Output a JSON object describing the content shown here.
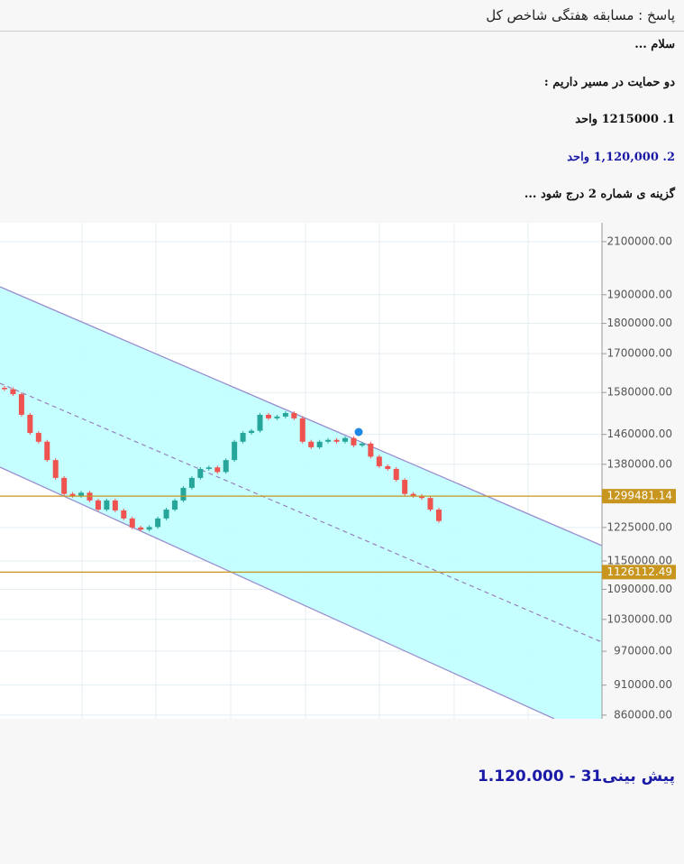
{
  "post": {
    "title": "پاسخ : مسابقه هفتگی شاخص کل",
    "lines": [
      "سلام ...",
      "دو حمایت در مسیر داریم :",
      "1. 1215000 واحد",
      "2. 1,120,000 واحد",
      "گزینه ی شماره 2 درج شود ..."
    ],
    "footer": "پیش بینی31 - 1.120.000"
  },
  "chart_data": {
    "type": "candlestick",
    "open": [
      1594000,
      1590000,
      1575000,
      1515000,
      1464000,
      1440000,
      1391000,
      1345000,
      1305000,
      1300000,
      1308000,
      1289000,
      1267000,
      1289000,
      1265000,
      1246000,
      1225000,
      1220000,
      1226000,
      1246000,
      1267000,
      1289000,
      1320000,
      1345000,
      1368000,
      1372000,
      1360000,
      1391000,
      1440000,
      1464000,
      1470000,
      1515000,
      1505000,
      1510000,
      1520000,
      1505000,
      1440000,
      1425000,
      1440000,
      1445000,
      1440000,
      1450000,
      1430000,
      1435000,
      1400000,
      1375000,
      1368000,
      1340000,
      1305000,
      1300000,
      1295000,
      1267000
    ],
    "close": [
      1590000,
      1575000,
      1515000,
      1464000,
      1440000,
      1391000,
      1345000,
      1305000,
      1300000,
      1308000,
      1289000,
      1267000,
      1289000,
      1265000,
      1246000,
      1225000,
      1220000,
      1226000,
      1246000,
      1267000,
      1289000,
      1320000,
      1345000,
      1368000,
      1372000,
      1360000,
      1391000,
      1440000,
      1464000,
      1470000,
      1515000,
      1505000,
      1510000,
      1520000,
      1505000,
      1440000,
      1425000,
      1440000,
      1445000,
      1440000,
      1450000,
      1430000,
      1435000,
      1400000,
      1375000,
      1368000,
      1340000,
      1305000,
      1300000,
      1295000,
      1267000,
      1240000
    ],
    "up_color": "#26a69a",
    "down_color": "#ef5350",
    "log": true,
    "ylim": [
      854000,
      2176000
    ],
    "grid": true,
    "yticks": [
      {
        "value": 2100000,
        "label": "2100000.00"
      },
      {
        "value": 1900000,
        "label": "1900000.00"
      },
      {
        "value": 1800000,
        "label": "1800000.00"
      },
      {
        "value": 1700000,
        "label": "1700000.00"
      },
      {
        "value": 1580000,
        "label": "1580000.00"
      },
      {
        "value": 1460000,
        "label": "1460000.00"
      },
      {
        "value": 1380000,
        "label": "1380000.00"
      },
      {
        "value": 1225000,
        "label": "1225000.00"
      },
      {
        "value": 1150000,
        "label": "1150000.00"
      },
      {
        "value": 1090000,
        "label": "1090000.00"
      },
      {
        "value": 1030000,
        "label": "1030000.00"
      },
      {
        "value": 970000,
        "label": "970000.00"
      },
      {
        "value": 910000,
        "label": "910000.00"
      },
      {
        "value": 860000,
        "label": "860000.00"
      }
    ],
    "price_lines": [
      {
        "value": 1299481.14,
        "color": "#c8961e"
      },
      {
        "value": 1126112.49,
        "color": "#c8961e"
      }
    ]
  }
}
